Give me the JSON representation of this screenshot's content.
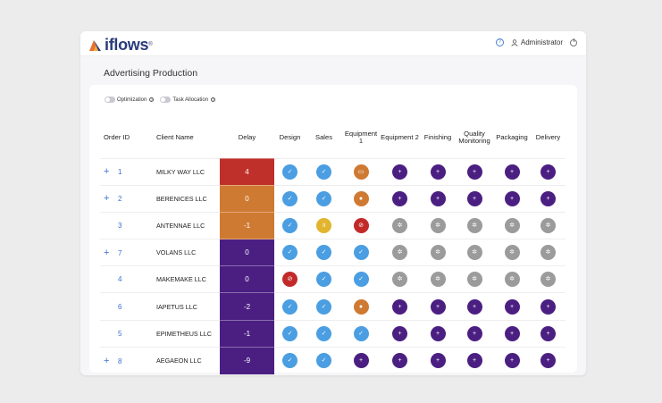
{
  "app": {
    "logo_text": "iflows",
    "logo_mark": "®",
    "user_label": "Administrator"
  },
  "page": {
    "title": "Advertising Production"
  },
  "toggles": [
    {
      "label": "Optimization"
    },
    {
      "label": "Task Allocation"
    }
  ],
  "columns": [
    "Order ID",
    "Client Name",
    "Delay",
    "Design",
    "Sales",
    "Equipment 1",
    "Equipment 2",
    "Finishing",
    "Quality Monitoring",
    "Packaging",
    "Delivery"
  ],
  "colors": {
    "blue": "#4a9ee1",
    "purple": "#4b1f82",
    "gray": "#9b9b9b",
    "orange": "#cf7a32",
    "red": "#c22a2a",
    "yellow": "#e2b52f",
    "delay_red": "#c0302a",
    "delay_orange": "#cf7a32",
    "delay_purple": "#4b1f82"
  },
  "rows": [
    {
      "expand": "+",
      "id": "1",
      "client": "MILKY WAY LLC",
      "delay": "4",
      "delay_color": "red",
      "stages": [
        {
          "c": "blue",
          "g": "✓"
        },
        {
          "c": "blue",
          "g": "✓"
        },
        {
          "c": "orange",
          "g": "▭"
        },
        {
          "c": "purple",
          "g": "+"
        },
        {
          "c": "purple",
          "g": "+"
        },
        {
          "c": "purple",
          "g": "+"
        },
        {
          "c": "purple",
          "g": "+"
        },
        {
          "c": "purple",
          "g": "+"
        }
      ]
    },
    {
      "expand": "+",
      "id": "2",
      "client": "BERENICES LLC",
      "delay": "0",
      "delay_color": "orange",
      "stages": [
        {
          "c": "blue",
          "g": "✓"
        },
        {
          "c": "blue",
          "g": "✓"
        },
        {
          "c": "orange",
          "g": "●"
        },
        {
          "c": "purple",
          "g": "+"
        },
        {
          "c": "purple",
          "g": "+"
        },
        {
          "c": "purple",
          "g": "+"
        },
        {
          "c": "purple",
          "g": "+"
        },
        {
          "c": "purple",
          "g": "+"
        }
      ]
    },
    {
      "expand": "",
      "id": "3",
      "client": "ANTENNAE LLC",
      "delay": "-1",
      "delay_color": "orange",
      "stages": [
        {
          "c": "blue",
          "g": "✓"
        },
        {
          "c": "yellow",
          "g": "॥"
        },
        {
          "c": "red",
          "g": "⊘"
        },
        {
          "c": "gray",
          "g": "✲"
        },
        {
          "c": "gray",
          "g": "✲"
        },
        {
          "c": "gray",
          "g": "✲"
        },
        {
          "c": "gray",
          "g": "✲"
        },
        {
          "c": "gray",
          "g": "✲"
        }
      ]
    },
    {
      "expand": "+",
      "id": "7",
      "client": "VOLANS LLC",
      "delay": "0",
      "delay_color": "purple",
      "stages": [
        {
          "c": "blue",
          "g": "✓"
        },
        {
          "c": "blue",
          "g": "✓"
        },
        {
          "c": "blue",
          "g": "✓"
        },
        {
          "c": "gray",
          "g": "✲"
        },
        {
          "c": "gray",
          "g": "✲"
        },
        {
          "c": "gray",
          "g": "✲"
        },
        {
          "c": "gray",
          "g": "✲"
        },
        {
          "c": "gray",
          "g": "✲"
        }
      ]
    },
    {
      "expand": "",
      "id": "4",
      "client": "MAKEMAKE LLC",
      "delay": "0",
      "delay_color": "purple",
      "stages": [
        {
          "c": "red",
          "g": "⊘"
        },
        {
          "c": "blue",
          "g": "✓"
        },
        {
          "c": "blue",
          "g": "✓"
        },
        {
          "c": "gray",
          "g": "✲"
        },
        {
          "c": "gray",
          "g": "✲"
        },
        {
          "c": "gray",
          "g": "✲"
        },
        {
          "c": "gray",
          "g": "✲"
        },
        {
          "c": "gray",
          "g": "✲"
        }
      ]
    },
    {
      "expand": "",
      "id": "6",
      "client": "IAPETUS LLC",
      "delay": "-2",
      "delay_color": "purple",
      "stages": [
        {
          "c": "blue",
          "g": "✓"
        },
        {
          "c": "blue",
          "g": "✓"
        },
        {
          "c": "orange",
          "g": "●"
        },
        {
          "c": "purple",
          "g": "+"
        },
        {
          "c": "purple",
          "g": "+"
        },
        {
          "c": "purple",
          "g": "+"
        },
        {
          "c": "purple",
          "g": "+"
        },
        {
          "c": "purple",
          "g": "+"
        }
      ]
    },
    {
      "expand": "",
      "id": "5",
      "client": "EPIMETHEUS LLC",
      "delay": "-1",
      "delay_color": "purple",
      "stages": [
        {
          "c": "blue",
          "g": "✓"
        },
        {
          "c": "blue",
          "g": "✓"
        },
        {
          "c": "blue",
          "g": "✓"
        },
        {
          "c": "purple",
          "g": "+"
        },
        {
          "c": "purple",
          "g": "+"
        },
        {
          "c": "purple",
          "g": "+"
        },
        {
          "c": "purple",
          "g": "+"
        },
        {
          "c": "purple",
          "g": "+"
        }
      ]
    },
    {
      "expand": "+",
      "id": "8",
      "client": "AEGAEON LLC",
      "delay": "-9",
      "delay_color": "purple",
      "stages": [
        {
          "c": "blue",
          "g": "✓"
        },
        {
          "c": "blue",
          "g": "✓"
        },
        {
          "c": "purple",
          "g": "+"
        },
        {
          "c": "purple",
          "g": "+"
        },
        {
          "c": "purple",
          "g": "+"
        },
        {
          "c": "purple",
          "g": "+"
        },
        {
          "c": "purple",
          "g": "+"
        },
        {
          "c": "purple",
          "g": "+"
        }
      ]
    }
  ]
}
